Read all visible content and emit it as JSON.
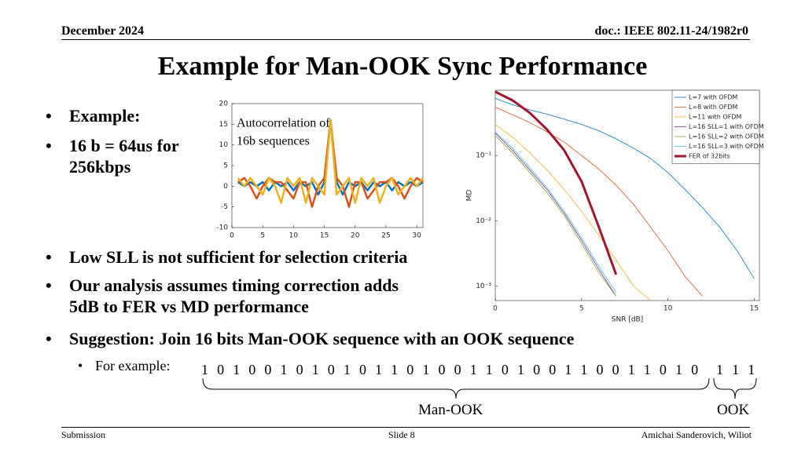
{
  "header": {
    "date": "December 2024",
    "doc": "doc.: IEEE 802.11-24/1982r0"
  },
  "title": "Example for Man-OOK Sync Performance",
  "bullets_top": [
    "Example:",
    "16 b = 64us for 256kbps"
  ],
  "bullets": [
    "Low SLL is not sufficient for selection criteria",
    "Our analysis assumes timing correction adds 5dB to FER vs MD performance",
    "Suggestion: Join 16 bits Man-OOK sequence with an OOK sequence"
  ],
  "sub_bullet": "For example:",
  "sequence": {
    "man_ook": "1 0 1 0 0 1 0 1 0 1 0 1 1 0 1 0 0 1 1 0 1 0 0 1 1 0 0 1 1 0 1 0",
    "ook": "1 1 1",
    "man_ook_label": "Man-OOK",
    "ook_label": "OOK"
  },
  "footer": {
    "left": "Submission",
    "center": "Slide 8",
    "right": "Amichai Sanderovich, Wiliot"
  },
  "chart_data": [
    {
      "type": "line",
      "annotation": [
        "Autocorrelation of",
        "16b sequences"
      ],
      "x": [
        1,
        2,
        3,
        4,
        5,
        6,
        7,
        8,
        9,
        10,
        11,
        12,
        13,
        14,
        15,
        16,
        17,
        18,
        19,
        20,
        21,
        22,
        23,
        24,
        25,
        26,
        27,
        28,
        29,
        30,
        31
      ],
      "xlim": [
        0,
        31
      ],
      "ylim": [
        -10,
        20
      ],
      "xticks": [
        0,
        5,
        10,
        15,
        20,
        25,
        30
      ],
      "yticks": [
        -10,
        -5,
        0,
        5,
        10,
        15,
        20
      ],
      "series": [
        {
          "color": "#0072bd",
          "line_width": 2.5,
          "values": [
            1,
            0,
            1,
            0,
            1,
            -1,
            1,
            0,
            1,
            -1,
            1,
            0,
            1,
            -2,
            1,
            16,
            1,
            -2,
            1,
            0,
            1,
            -1,
            1,
            0,
            1,
            -1,
            1,
            0,
            1,
            0,
            1
          ]
        },
        {
          "color": "#d95319",
          "line_width": 2.5,
          "values": [
            1,
            2,
            0,
            -3,
            0,
            2,
            1,
            1,
            -1,
            -3,
            1,
            1,
            -5,
            0,
            2,
            16,
            2,
            0,
            -5,
            1,
            1,
            -3,
            -1,
            1,
            1,
            2,
            0,
            -3,
            0,
            2,
            1
          ]
        },
        {
          "color": "#edb120",
          "line_width": 2.5,
          "values": [
            2,
            0,
            2,
            0,
            -2,
            2,
            0,
            -4,
            2,
            0,
            2,
            -4,
            2,
            0,
            -2,
            16,
            -2,
            0,
            2,
            -4,
            2,
            0,
            2,
            -4,
            0,
            2,
            -2,
            0,
            2,
            0,
            2
          ]
        }
      ]
    },
    {
      "type": "line",
      "log_y": true,
      "legend": "top-right",
      "xlabel": "SNR [dB]",
      "ylabel": "MD",
      "x": [
        0,
        1,
        2,
        3,
        4,
        5,
        6,
        7,
        8,
        9,
        10,
        11,
        12,
        13,
        14,
        15
      ],
      "xlim": [
        0,
        15.3
      ],
      "ylim": [
        0.0006,
        1
      ],
      "xticks": [
        0,
        5,
        10,
        15
      ],
      "yticks": [
        {
          "value": 0.001,
          "label": "10⁻³"
        },
        {
          "value": 0.01,
          "label": "10⁻²"
        },
        {
          "value": 0.1,
          "label": "10⁻¹"
        }
      ],
      "series": [
        {
          "name": "L=7 with OFDM",
          "color": "#0072bd",
          "line_width": 0.8,
          "values": [
            0.75,
            0.6,
            0.5,
            0.43,
            0.36,
            0.3,
            0.24,
            0.18,
            0.13,
            0.09,
            0.055,
            0.03,
            0.016,
            0.008,
            0.0035,
            0.0013
          ]
        },
        {
          "name": "L=8 with OFDM",
          "color": "#d95319",
          "line_width": 0.8,
          "values": [
            0.55,
            0.42,
            0.32,
            0.23,
            0.16,
            0.1,
            0.062,
            0.035,
            0.018,
            0.008,
            0.0035,
            0.0014,
            0.0007,
            null,
            null,
            null
          ]
        },
        {
          "name": "L=11 with OFDM",
          "color": "#edb120",
          "line_width": 0.8,
          "values": [
            0.3,
            0.19,
            0.11,
            0.06,
            0.03,
            0.014,
            0.006,
            0.0025,
            0.001,
            0.0006,
            null,
            null,
            null,
            null,
            null,
            null
          ]
        },
        {
          "name": "L=16 SLL=1 with OFDM",
          "color": "#7e2f8e",
          "line_width": 0.8,
          "values": [
            0.22,
            0.12,
            0.06,
            0.03,
            0.013,
            0.005,
            0.0018,
            0.0007,
            null,
            null,
            null,
            null,
            null,
            null,
            null,
            null
          ]
        },
        {
          "name": "L=16 SLL=2 with OFDM",
          "color": "#77ac30",
          "line_width": 0.8,
          "values": [
            0.2,
            0.11,
            0.055,
            0.027,
            0.012,
            0.0045,
            0.0016,
            0.0007,
            null,
            null,
            null,
            null,
            null,
            null,
            null,
            null
          ]
        },
        {
          "name": "L=16 SLL=3 with OFDM",
          "color": "#4dbeee",
          "line_width": 0.8,
          "values": [
            0.23,
            0.13,
            0.065,
            0.032,
            0.014,
            0.0055,
            0.002,
            0.0008,
            null,
            null,
            null,
            null,
            null,
            null,
            null,
            null
          ]
        },
        {
          "name": "FER of 32bits",
          "color": "#a2142f",
          "line_width": 3,
          "values": [
            0.95,
            0.7,
            0.45,
            0.25,
            0.12,
            0.04,
            0.008,
            0.0015,
            null,
            null,
            null,
            null,
            null,
            null,
            null,
            null
          ]
        }
      ]
    }
  ]
}
